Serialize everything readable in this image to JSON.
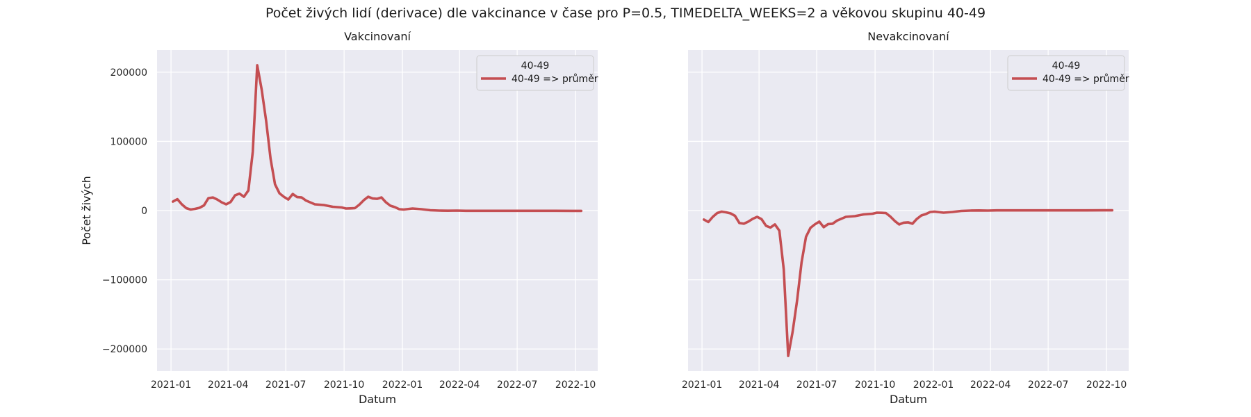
{
  "figure": {
    "title": "Počet živých lidí (derivace) dle vakcinance v čase pro P=0.5, TIMEDELTA_WEEKS=2 a věkovou skupinu 40-49"
  },
  "colors": {
    "line": "#c44e52",
    "panel_bg": "#eaeaf2",
    "grid": "#ffffff"
  },
  "chart_data": [
    {
      "type": "line",
      "title": "Vakcinovaní",
      "xlabel": "Datum",
      "ylabel": "Počet živých",
      "xlim": [
        "2020-12-10",
        "2022-11-05"
      ],
      "ylim": [
        -232000,
        232000
      ],
      "x_ticks": [
        "2021-01",
        "2021-04",
        "2021-07",
        "2021-10",
        "2022-01",
        "2022-04",
        "2022-07",
        "2022-10"
      ],
      "y_ticks": [
        -200000,
        -100000,
        0,
        100000,
        200000
      ],
      "y_tick_labels": [
        "−200000",
        "−100000",
        "0",
        "100000",
        "200000"
      ],
      "grid": true,
      "legend": {
        "title": "40-49",
        "placement": "top-right"
      },
      "series": [
        {
          "name": "40-49 => průměr",
          "x": [
            "2021-01-04",
            "2021-01-11",
            "2021-01-18",
            "2021-01-25",
            "2021-02-01",
            "2021-02-08",
            "2021-02-15",
            "2021-02-22",
            "2021-03-01",
            "2021-03-08",
            "2021-03-15",
            "2021-03-22",
            "2021-03-29",
            "2021-04-05",
            "2021-04-12",
            "2021-04-19",
            "2021-04-26",
            "2021-05-03",
            "2021-05-10",
            "2021-05-17",
            "2021-05-24",
            "2021-05-31",
            "2021-06-07",
            "2021-06-14",
            "2021-06-21",
            "2021-06-28",
            "2021-07-05",
            "2021-07-12",
            "2021-07-19",
            "2021-07-26",
            "2021-08-02",
            "2021-08-16",
            "2021-08-30",
            "2021-09-13",
            "2021-09-27",
            "2021-10-04",
            "2021-10-11",
            "2021-10-18",
            "2021-10-25",
            "2021-11-01",
            "2021-11-08",
            "2021-11-15",
            "2021-11-22",
            "2021-11-29",
            "2021-12-06",
            "2021-12-13",
            "2021-12-20",
            "2021-12-27",
            "2022-01-03",
            "2022-01-17",
            "2022-01-31",
            "2022-02-14",
            "2022-02-28",
            "2022-03-14",
            "2022-03-28",
            "2022-04-11",
            "2022-05-09",
            "2022-06-06",
            "2022-07-04",
            "2022-08-01",
            "2022-08-29",
            "2022-09-26",
            "2022-10-10"
          ],
          "y": [
            13000,
            16500,
            9000,
            3500,
            1500,
            2500,
            4000,
            7500,
            18000,
            19000,
            16000,
            12000,
            9000,
            12500,
            22000,
            24500,
            20000,
            29000,
            85000,
            210000,
            175000,
            130000,
            75000,
            38000,
            25000,
            20000,
            16000,
            24000,
            19500,
            19000,
            14500,
            9000,
            8000,
            5500,
            4500,
            3000,
            3200,
            3500,
            8500,
            15000,
            20000,
            17500,
            17000,
            19000,
            12000,
            7000,
            5000,
            2000,
            1500,
            3000,
            2000,
            500,
            0,
            -200,
            0,
            -300,
            -300,
            -300,
            -300,
            -300,
            -300,
            -400,
            -400
          ]
        }
      ]
    },
    {
      "type": "line",
      "title": "Nevakcinovaní",
      "xlabel": "Datum",
      "ylabel": "",
      "xlim": [
        "2020-12-10",
        "2022-11-05"
      ],
      "ylim": [
        -232000,
        232000
      ],
      "x_ticks": [
        "2021-01",
        "2021-04",
        "2021-07",
        "2021-10",
        "2022-01",
        "2022-04",
        "2022-07",
        "2022-10"
      ],
      "y_ticks": [
        -200000,
        -100000,
        0,
        100000,
        200000
      ],
      "grid": true,
      "legend": {
        "title": "40-49",
        "placement": "top-right"
      },
      "series": [
        {
          "name": "40-49 => průměr",
          "x": [
            "2021-01-04",
            "2021-01-11",
            "2021-01-18",
            "2021-01-25",
            "2021-02-01",
            "2021-02-08",
            "2021-02-15",
            "2021-02-22",
            "2021-03-01",
            "2021-03-08",
            "2021-03-15",
            "2021-03-22",
            "2021-03-29",
            "2021-04-05",
            "2021-04-12",
            "2021-04-19",
            "2021-04-26",
            "2021-05-03",
            "2021-05-10",
            "2021-05-17",
            "2021-05-24",
            "2021-05-31",
            "2021-06-07",
            "2021-06-14",
            "2021-06-21",
            "2021-06-28",
            "2021-07-05",
            "2021-07-12",
            "2021-07-19",
            "2021-07-26",
            "2021-08-02",
            "2021-08-16",
            "2021-08-30",
            "2021-09-13",
            "2021-09-27",
            "2021-10-04",
            "2021-10-11",
            "2021-10-18",
            "2021-10-25",
            "2021-11-01",
            "2021-11-08",
            "2021-11-15",
            "2021-11-22",
            "2021-11-29",
            "2021-12-06",
            "2021-12-13",
            "2021-12-20",
            "2021-12-27",
            "2022-01-03",
            "2022-01-17",
            "2022-01-31",
            "2022-02-14",
            "2022-02-28",
            "2022-03-14",
            "2022-03-28",
            "2022-04-11",
            "2022-05-09",
            "2022-06-06",
            "2022-07-04",
            "2022-08-01",
            "2022-08-29",
            "2022-09-26",
            "2022-10-10"
          ],
          "y": [
            -13000,
            -16500,
            -9000,
            -3500,
            -1500,
            -2500,
            -4000,
            -7500,
            -18000,
            -19000,
            -16000,
            -12000,
            -9000,
            -12500,
            -22000,
            -24500,
            -20000,
            -29000,
            -85000,
            -210000,
            -175000,
            -130000,
            -75000,
            -38000,
            -25000,
            -20000,
            -16000,
            -24000,
            -19500,
            -19000,
            -14500,
            -9000,
            -8000,
            -5500,
            -4500,
            -3000,
            -3200,
            -3500,
            -8500,
            -15000,
            -20000,
            -17500,
            -17000,
            -19000,
            -12000,
            -7000,
            -5000,
            -2000,
            -1500,
            -3000,
            -2000,
            -500,
            0,
            200,
            0,
            300,
            300,
            300,
            300,
            300,
            300,
            400,
            400
          ]
        }
      ]
    }
  ]
}
